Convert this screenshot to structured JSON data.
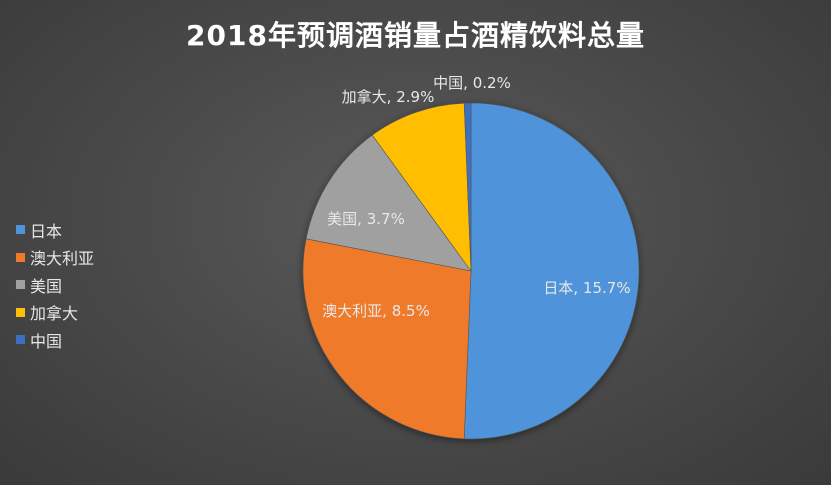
{
  "chart_data": {
    "type": "pie",
    "title": "2018年预调酒销量占酒精饮料总量",
    "slices": [
      {
        "name": "日本",
        "value": 15.7,
        "label": "日本, 15.7%",
        "color": "#4f94da"
      },
      {
        "name": "澳大利亚",
        "value": 8.5,
        "label": "澳大利亚, 8.5%",
        "color": "#ef7a2a"
      },
      {
        "name": "美国",
        "value": 3.7,
        "label": "美国, 3.7%",
        "color": "#a0a0a0"
      },
      {
        "name": "加拿大",
        "value": 2.9,
        "label": "加拿大, 2.9%",
        "color": "#ffbf00"
      },
      {
        "name": "中国",
        "value": 0.2,
        "label": "中国, 0.2%",
        "color": "#3d6fc0"
      }
    ],
    "legend_position": "left"
  }
}
